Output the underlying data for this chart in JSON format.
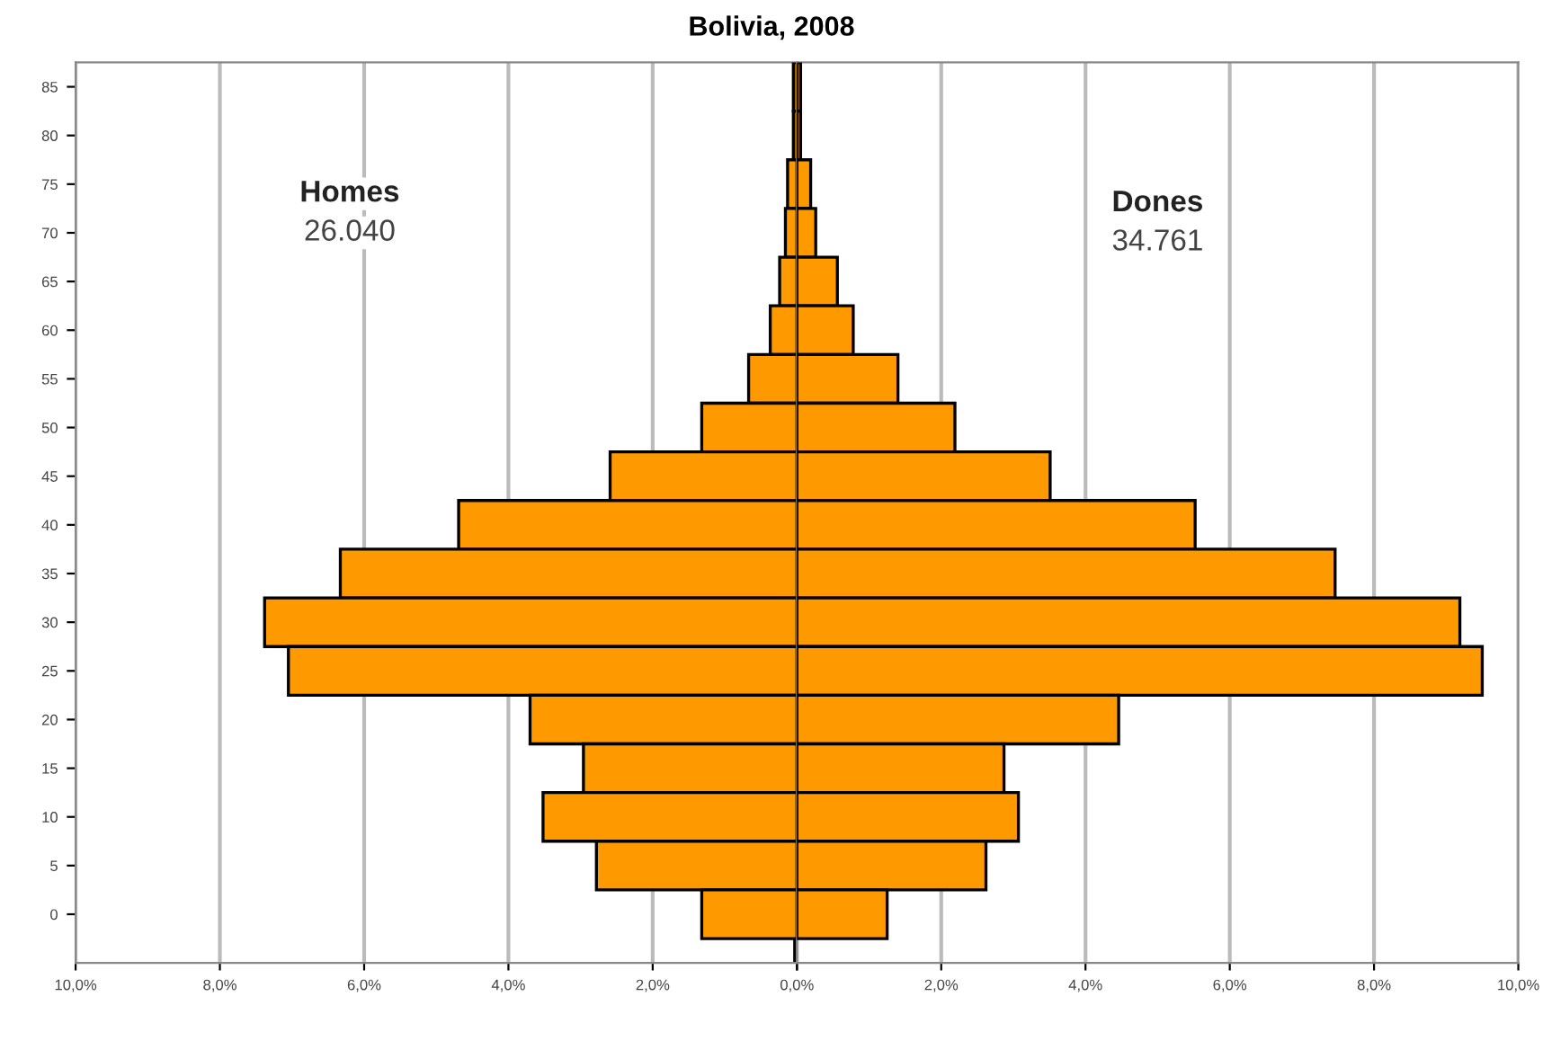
{
  "chart_data": [
    {
      "type": "bar",
      "orientation": "horizontal",
      "title": "Bolivia, 2008",
      "categories": [
        "85",
        "80",
        "75",
        "70",
        "65",
        "60",
        "55",
        "50",
        "45",
        "40",
        "35",
        "30",
        "25",
        "20",
        "15",
        "10",
        "5",
        "0"
      ],
      "series": [
        {
          "color": "#ff9900",
          "values": [
            0.05,
            0.05,
            0.13,
            0.16,
            0.24,
            0.37,
            0.67,
            1.32,
            2.59,
            4.69,
            6.33,
            7.38,
            7.05,
            3.7,
            2.96,
            3.52,
            2.78,
            1.32
          ]
        }
      ],
      "xlim": [
        10,
        0
      ],
      "xticks": [
        {
          "value": 10,
          "label": "10,0%"
        },
        {
          "value": 8,
          "label": "8,0%"
        },
        {
          "value": 6,
          "label": "6,0%"
        },
        {
          "value": 4,
          "label": "4,0%"
        },
        {
          "value": 2,
          "label": "2,0%"
        },
        {
          "value": 0,
          "label": null
        }
      ],
      "ref_lines": [
        {
          "axis": "x",
          "value": 0,
          "color": "#000000"
        }
      ],
      "annotations": [
        "Homes",
        "26.040"
      ],
      "grid": "x",
      "legend": false
    },
    {
      "type": "bar",
      "orientation": "horizontal",
      "categories": [
        "85",
        "80",
        "75",
        "70",
        "65",
        "60",
        "55",
        "50",
        "45",
        "40",
        "35",
        "30",
        "25",
        "20",
        "15",
        "10",
        "5",
        "0"
      ],
      "series": [
        {
          "color": "#ff9900",
          "values": [
            0.05,
            0.05,
            0.19,
            0.26,
            0.56,
            0.78,
            1.4,
            2.19,
            3.51,
            5.52,
            7.46,
            9.19,
            9.5,
            4.46,
            2.87,
            3.07,
            2.62,
            1.25
          ]
        }
      ],
      "xlim": [
        0,
        10
      ],
      "xticks": [
        {
          "value": 0,
          "label": "0,0%"
        },
        {
          "value": 2,
          "label": "2,0%"
        },
        {
          "value": 4,
          "label": "4,0%"
        },
        {
          "value": 6,
          "label": "6,0%"
        },
        {
          "value": 8,
          "label": "8,0%"
        },
        {
          "value": 10,
          "label": "10,0%"
        }
      ],
      "annotations": [
        "Dones",
        "34.761"
      ],
      "tick_labels": "x",
      "grid": "x",
      "legend": false
    }
  ]
}
